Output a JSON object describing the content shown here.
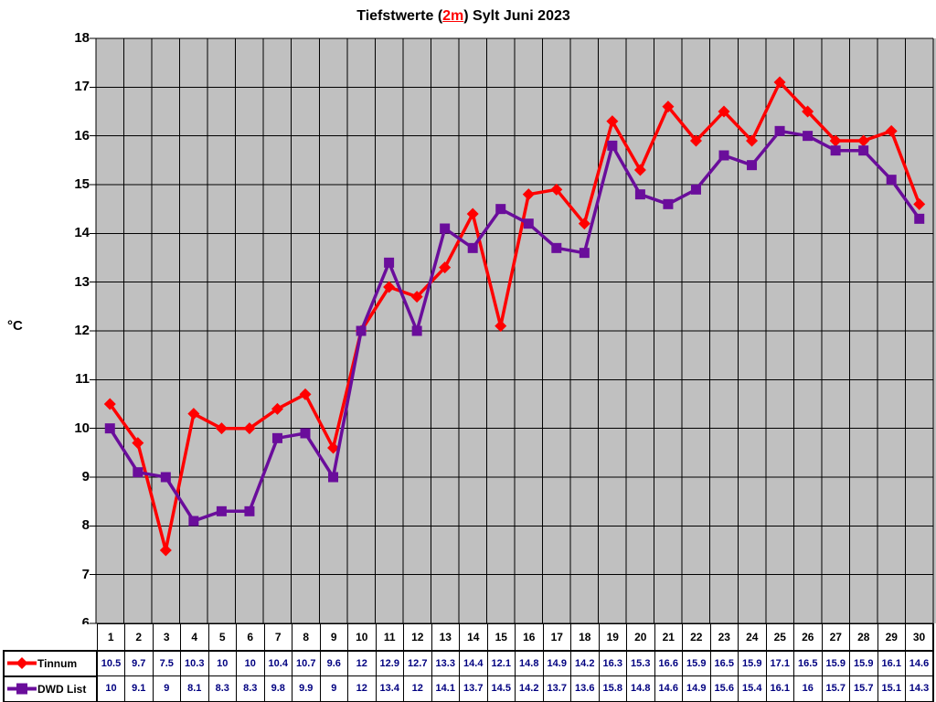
{
  "title": {
    "prefix": "Tiefstwerte (",
    "highlight": "2m",
    "suffix": ") Sylt Juni 2023"
  },
  "y_axis": {
    "unit": "°C",
    "ticks": [
      18,
      17,
      16,
      15,
      14,
      13,
      12,
      11,
      10,
      9,
      8,
      7,
      6
    ]
  },
  "chart_data": {
    "type": "line",
    "title": "Tiefstwerte (2m) Sylt Juni 2023",
    "xlabel": "",
    "ylabel": "°C",
    "ylim": [
      6,
      18
    ],
    "grid": true,
    "plot_bg": "#C0C0C0",
    "grid_color": "#000000",
    "legend_position": "table-left",
    "categories": [
      1,
      2,
      3,
      4,
      5,
      6,
      7,
      8,
      9,
      10,
      11,
      12,
      13,
      14,
      15,
      16,
      17,
      18,
      19,
      20,
      21,
      22,
      23,
      24,
      25,
      26,
      27,
      28,
      29,
      30
    ],
    "series": [
      {
        "name": "Tinnum",
        "color": "#FF0000",
        "marker": "diamond",
        "values": [
          10.5,
          9.7,
          7.5,
          10.3,
          10,
          10,
          10.4,
          10.7,
          9.6,
          12,
          12.9,
          12.7,
          13.3,
          14.4,
          12.1,
          14.8,
          14.9,
          14.2,
          16.3,
          15.3,
          16.6,
          15.9,
          16.5,
          15.9,
          17.1,
          16.5,
          15.9,
          15.9,
          16.1,
          14.6
        ]
      },
      {
        "name": "DWD List",
        "color": "#6A0D9B",
        "marker": "square",
        "values": [
          10,
          9.1,
          9,
          8.1,
          8.3,
          8.3,
          9.8,
          9.9,
          9,
          12,
          13.4,
          12,
          14.1,
          13.7,
          14.5,
          14.2,
          13.7,
          13.6,
          15.8,
          14.8,
          14.6,
          14.9,
          15.6,
          15.4,
          16.1,
          16,
          15.7,
          15.7,
          15.1,
          14.3
        ]
      }
    ]
  },
  "table": {
    "value_color": "#000080"
  }
}
